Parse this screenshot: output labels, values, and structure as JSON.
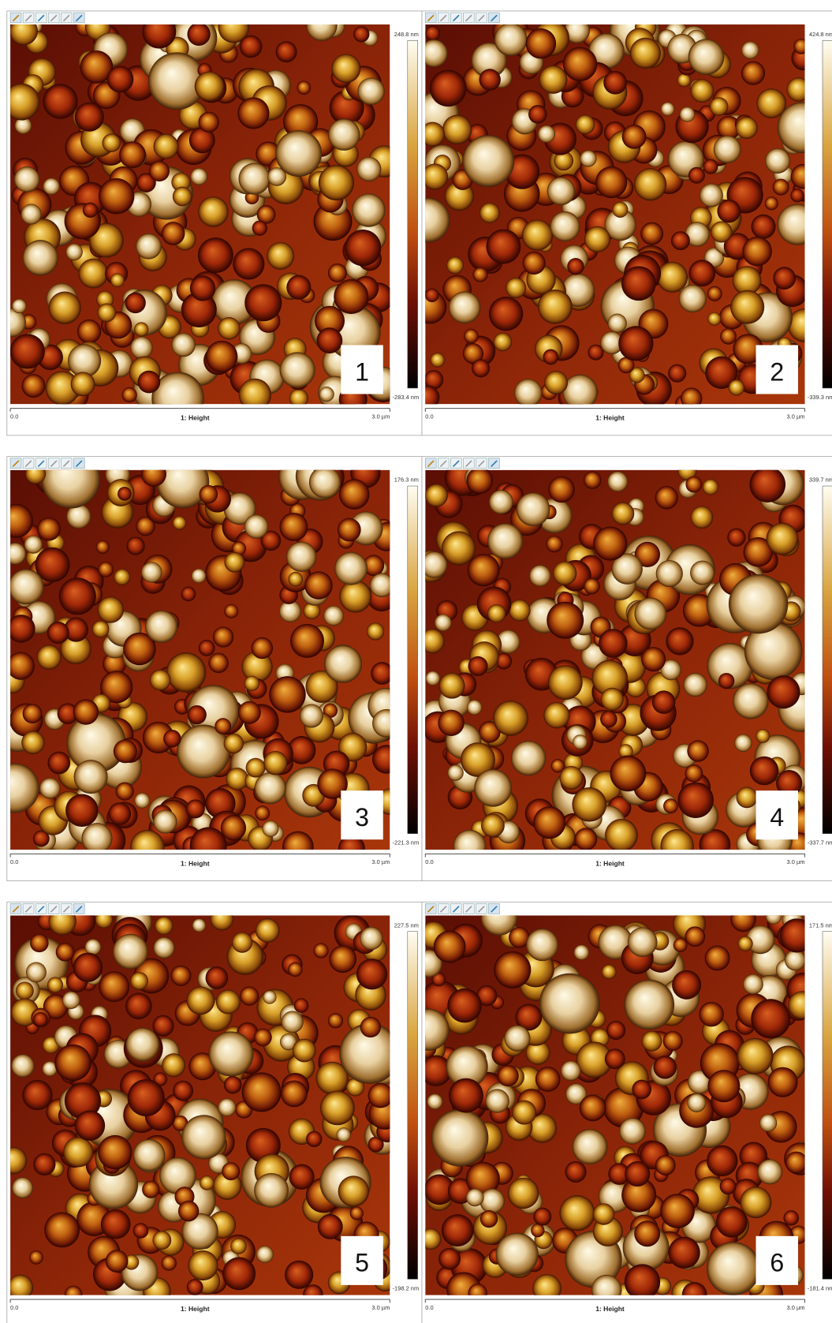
{
  "panels": [
    {
      "label": "1",
      "scale_max": "248.8 nm",
      "scale_min": "-283.4 nm",
      "x_start": "0.0",
      "channel": "1: Height",
      "x_end": "3.0 µm"
    },
    {
      "label": "2",
      "scale_max": "424.8 nm",
      "scale_min": "-339.3 nm",
      "x_start": "0.0",
      "channel": "1: Height",
      "x_end": "3.0 µm"
    },
    {
      "label": "3",
      "scale_max": "176.3 nm",
      "scale_min": "-221.3 nm",
      "x_start": "0.0",
      "channel": "1: Height",
      "x_end": "3.0 µm"
    },
    {
      "label": "4",
      "scale_max": "339.7 nm",
      "scale_min": "-337.7 nm",
      "x_start": "0.0",
      "channel": "1: Height",
      "x_end": "3.0 µm"
    },
    {
      "label": "5",
      "scale_max": "227.5 nm",
      "scale_min": "-198.2 nm",
      "x_start": "0.0",
      "channel": "1: Height",
      "x_end": "3.0 µm"
    },
    {
      "label": "6",
      "scale_max": "171.5 nm",
      "scale_min": "-181.4 nm",
      "x_start": "0.0",
      "channel": "1: Height",
      "x_end": "3.0 µm"
    }
  ]
}
